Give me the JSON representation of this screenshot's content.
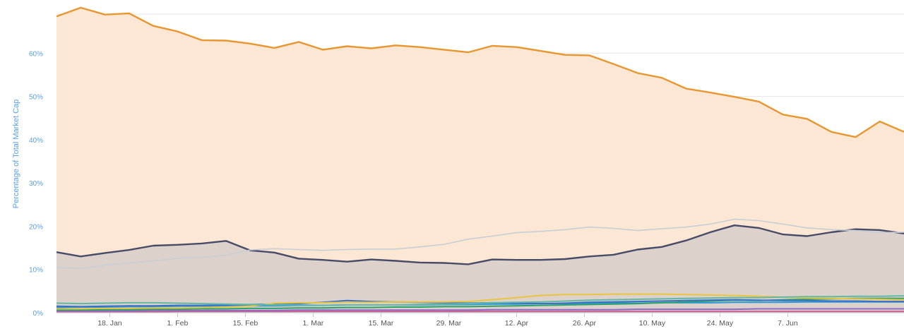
{
  "chart_data": {
    "type": "area",
    "ylabel": "Percentage of Total Market Cap",
    "ylim": [
      0,
      70
    ],
    "grid": true,
    "legend": "none",
    "x": [
      0,
      5,
      10,
      15,
      20,
      25,
      30,
      35,
      40,
      45,
      50,
      55,
      60,
      65,
      70,
      75,
      80,
      85,
      90,
      95,
      100,
      105,
      110,
      115,
      120,
      125,
      130,
      135,
      140,
      145,
      150,
      155,
      160,
      165,
      170,
      175
    ],
    "x_ticks": [
      {
        "label": "18. Jan",
        "x": 11
      },
      {
        "label": "1. Feb",
        "x": 25
      },
      {
        "label": "15. Feb",
        "x": 39
      },
      {
        "label": "1. Mar",
        "x": 53
      },
      {
        "label": "15. Mar",
        "x": 67
      },
      {
        "label": "29. Mar",
        "x": 81
      },
      {
        "label": "12. Apr",
        "x": 95
      },
      {
        "label": "26. Apr",
        "x": 109
      },
      {
        "label": "10. May",
        "x": 123
      },
      {
        "label": "24. May",
        "x": 137
      },
      {
        "label": "7. Jun",
        "x": 151
      }
    ],
    "y_ticks": [
      {
        "label": "0%",
        "value": 0
      },
      {
        "label": "10%",
        "value": 10
      },
      {
        "label": "20%",
        "value": 20
      },
      {
        "label": "30%",
        "value": 30
      },
      {
        "label": "40%",
        "value": 40
      },
      {
        "label": "50%",
        "value": 50
      },
      {
        "label": "60%",
        "value": 60
      }
    ],
    "x_range": [
      0,
      175
    ],
    "series": [
      {
        "color": "#e8962f",
        "fill": "#fbe7d3",
        "values": [
          68.5,
          70.5,
          68.9,
          69.2,
          66.3,
          65,
          63,
          62.9,
          62.2,
          61.2,
          62.6,
          60.8,
          61.6,
          61.1,
          61.8,
          61.4,
          60.8,
          60.2,
          61.7,
          61.4,
          60.5,
          59.6,
          59.5,
          57.5,
          55.4,
          54.3,
          51.8,
          50.9,
          49.9,
          48.8,
          45.8,
          44.8,
          41.8,
          40.6,
          44.2,
          41.8
        ]
      },
      {
        "color": "#c8cdd6",
        "fill": null,
        "values": [
          10.5,
          10.2,
          11,
          11.5,
          12,
          12.6,
          12.8,
          13.3,
          14.5,
          14.8,
          14.6,
          14.4,
          14.6,
          14.7,
          14.7,
          15.2,
          15.8,
          17,
          17.7,
          18.5,
          18.8,
          19.2,
          19.8,
          19.5,
          19,
          19.4,
          19.8,
          20.5,
          21.6,
          21.3,
          20.5,
          19.6,
          19.2,
          19,
          18.5,
          18.6
        ]
      },
      {
        "color": "#474b67",
        "fill": "#dcd2cb",
        "values": [
          14,
          13,
          13.8,
          14.5,
          15.5,
          15.7,
          16,
          16.6,
          14.4,
          13.9,
          12.5,
          12.2,
          11.8,
          12.3,
          12.0,
          11.6,
          11.5,
          11.2,
          12.3,
          12.2,
          12.2,
          12.4,
          13,
          13.4,
          14.6,
          15.2,
          16.7,
          18.6,
          20.2,
          19.6,
          18.1,
          17.7,
          18.6,
          19.3,
          19.1,
          18.3
        ]
      },
      {
        "color": "#62b8a6",
        "fill": null,
        "values": [
          2.2,
          2.1,
          2.2,
          2.3,
          2.3,
          2.2,
          2.1,
          2,
          1.9,
          1.8,
          1.8,
          1.7,
          1.8,
          1.8,
          1.8,
          1.9,
          2.0,
          2.1,
          2.3,
          2.4,
          2.5,
          2.7,
          2.9,
          3.0,
          3.1,
          3.2,
          3.3,
          3.4,
          3.5,
          3.5,
          3.6,
          3.7,
          3.7,
          3.8,
          3.8,
          3.9
        ]
      },
      {
        "color": "#e9c53f",
        "fill": null,
        "values": [
          0.9,
          0.9,
          1.0,
          1.0,
          1.1,
          1.1,
          1.2,
          1.3,
          1.5,
          2.2,
          2.3,
          2.3,
          2.4,
          2.4,
          2.5,
          2.5,
          2.5,
          2.6,
          3.0,
          3.5,
          4.0,
          4.2,
          4.2,
          4.3,
          4.3,
          4.3,
          4.2,
          4.1,
          4.0,
          3.8,
          3.6,
          3.4,
          3.3,
          3.2,
          3.1,
          3.0
        ]
      },
      {
        "color": "#3a6fc9",
        "fill": null,
        "values": [
          1.5,
          1.4,
          1.5,
          1.6,
          1.6,
          1.7,
          1.7,
          1.8,
          1.9,
          2.0,
          2.1,
          2.4,
          2.8,
          2.6,
          2.5,
          2.4,
          2.3,
          2.2,
          2.3,
          2.2,
          2.1,
          2.2,
          2.4,
          2.5,
          2.6,
          2.7,
          2.8,
          2.9,
          3.0,
          2.9,
          2.8,
          2.8,
          2.7,
          2.7,
          2.6,
          2.6
        ]
      },
      {
        "color": "#2ba26a",
        "fill": null,
        "values": [
          0.6,
          0.6,
          0.7,
          0.7,
          0.8,
          0.8,
          0.9,
          0.9,
          1.0,
          1.0,
          1.1,
          1.1,
          1.2,
          1.2,
          1.3,
          1.3,
          1.4,
          1.4,
          1.5,
          1.6,
          1.7,
          1.8,
          1.9,
          2.0,
          2.1,
          2.3,
          2.5,
          2.7,
          2.9,
          2.8,
          3.0,
          3.1,
          3.2,
          3.3,
          3.3,
          3.3
        ]
      },
      {
        "color": "#2f98d9",
        "fill": null,
        "values": [
          1.2,
          1.3,
          1.3,
          1.4,
          1.4,
          1.5,
          1.5,
          1.5,
          1.6,
          1.6,
          1.7,
          1.7,
          1.8,
          1.8,
          1.8,
          1.8,
          1.9,
          1.9,
          2.0,
          2.0,
          2.1,
          2.1,
          2.2,
          2.2,
          2.2,
          2.3,
          2.3,
          2.3,
          2.4,
          2.4,
          2.4,
          2.5,
          2.5,
          2.5,
          2.5,
          2.5
        ]
      },
      {
        "color": "#8e6ac8",
        "fill": null,
        "values": [
          0.4,
          0.4,
          0.4,
          0.4,
          0.5,
          0.5,
          0.5,
          0.5,
          0.5,
          0.5,
          0.6,
          0.6,
          0.6,
          0.6,
          0.6,
          0.6,
          0.6,
          0.6,
          0.7,
          0.7,
          0.7,
          0.7,
          0.7,
          0.7,
          0.8,
          0.8,
          0.8,
          0.8,
          0.8,
          0.9,
          0.9,
          0.9,
          0.9,
          0.9,
          0.9,
          0.9
        ]
      },
      {
        "color": "#d05c8a",
        "fill": null,
        "values": [
          0.2,
          0.2,
          0.2,
          0.2,
          0.2,
          0.3,
          0.3,
          0.3,
          0.3,
          0.3,
          0.3,
          0.3,
          0.3,
          0.3,
          0.3,
          0.3,
          0.3,
          0.3,
          0.3,
          0.3,
          0.3,
          0.3,
          0.3,
          0.3,
          0.3,
          0.3,
          0.3,
          0.3,
          0.3,
          0.3,
          0.3,
          0.3,
          0.3,
          0.3,
          0.3,
          0.3
        ]
      }
    ]
  }
}
